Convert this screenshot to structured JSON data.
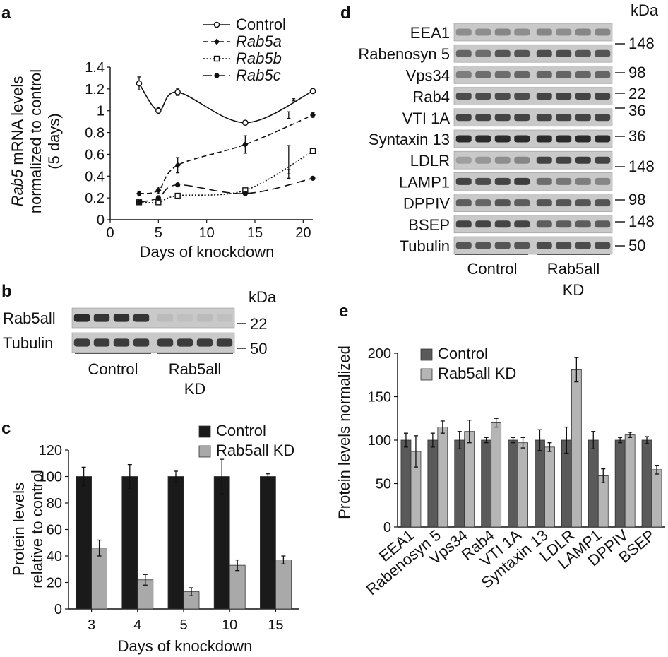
{
  "colors": {
    "control_bar": "#1a1a1a",
    "kd_bar": "#a9a9a9",
    "e_control": "#5a5a5a",
    "e_kd": "#b5b5b5"
  },
  "panel_a": {
    "letter": "a",
    "ylabel_italic": "Rab5",
    "ylabel_rest": " mRNA levels",
    "ylabel_line2": "normalized to control",
    "ylabel_line3": "(5 days)",
    "xlabel": "Days of knockdown",
    "legend": [
      {
        "label": "Control",
        "italic": false
      },
      {
        "label": "Rab5a",
        "italic": true
      },
      {
        "label": "Rab5b",
        "italic": true
      },
      {
        "label": "Rab5c",
        "italic": true
      }
    ]
  },
  "panel_b": {
    "letter": "b",
    "kda": "kDa",
    "rows": [
      {
        "label": "Rab5all",
        "kda": "22"
      },
      {
        "label": "Tubulin",
        "kda": "50"
      }
    ],
    "groups": [
      "Control",
      "Rab5all",
      "KD"
    ]
  },
  "panel_c": {
    "letter": "c",
    "ylabel_line1": "Protein levels",
    "ylabel_line2": "relative to control",
    "xlabel": "Days of knockdown"
  },
  "panel_d": {
    "letter": "d",
    "kda": "kDa",
    "rows": [
      {
        "label": "EEA1",
        "kda": "148"
      },
      {
        "label": "Rabenosyn 5",
        "kda": ""
      },
      {
        "label": "Vps34",
        "kda": "98"
      },
      {
        "label": "Rab4",
        "kda": "22"
      },
      {
        "label": "VTI 1A",
        "kda": "36"
      },
      {
        "label": "Syntaxin 13",
        "kda": "36"
      },
      {
        "label": "LDLR",
        "kda": "148"
      },
      {
        "label": "LAMP1",
        "kda": ""
      },
      {
        "label": "DPPIV",
        "kda": "98"
      },
      {
        "label": "BSEP",
        "kda": "148"
      },
      {
        "label": "Tubulin",
        "kda": "50"
      }
    ],
    "groups": [
      "Control",
      "Rab5all",
      "KD"
    ]
  },
  "panel_e": {
    "letter": "e",
    "ylabel": "Protein levels normalized"
  },
  "chart_data": [
    {
      "type": "line",
      "panel": "a",
      "xlabel": "Days of knockdown",
      "ylabel": "Rab5 mRNA levels normalized to control (5 days)",
      "xlim": [
        0,
        21
      ],
      "ylim": [
        0,
        1.4
      ],
      "xticks": [
        0,
        5,
        10,
        15,
        20
      ],
      "yticks": [
        0,
        0.2,
        0.4,
        0.6,
        0.8,
        1,
        1.2,
        1.4
      ],
      "legend_position": "top-right",
      "x": [
        3,
        5,
        7,
        14,
        21
      ],
      "series": [
        {
          "name": "Control",
          "values": [
            1.25,
            1.0,
            1.17,
            0.89,
            1.18
          ],
          "errors": [
            0.06,
            0.03,
            0.03,
            0.02,
            0.02
          ],
          "style": "solid",
          "marker": "open-circle"
        },
        {
          "name": "Rab5a",
          "values": [
            0.24,
            0.27,
            0.5,
            0.69,
            0.96
          ],
          "errors": [
            0.02,
            0.03,
            0.07,
            0.08,
            0.02
          ],
          "style": "dashed",
          "marker": "diamond"
        },
        {
          "name": "Rab5b",
          "values": [
            0.16,
            0.16,
            0.22,
            0.27,
            0.63
          ],
          "errors": [
            0.01,
            0.02,
            0.02,
            0.02,
            0.02
          ],
          "style": "dotted",
          "marker": "open-square"
        },
        {
          "name": "Rab5c",
          "values": [
            0.16,
            0.2,
            0.32,
            0.24,
            0.38
          ],
          "errors": [
            0.01,
            0.02,
            0.01,
            0.02,
            0.01
          ],
          "style": "long-dash",
          "marker": "filled-circle"
        }
      ],
      "extra_errorbars": [
        {
          "x": 18.5,
          "y": 0.96,
          "err": 0.03
        },
        {
          "x": 19.0,
          "y": 1.1,
          "err": 0.01
        },
        {
          "x": 18.5,
          "y": 0.55,
          "err": 0.13
        },
        {
          "x": 18.5,
          "y": 0.42,
          "err": 0.04
        }
      ]
    },
    {
      "type": "bar",
      "panel": "c",
      "categories": [
        "3",
        "4",
        "5",
        "10",
        "15"
      ],
      "xlabel": "Days of knockdown",
      "ylabel": "Protein levels relative to control",
      "ylim": [
        0,
        120
      ],
      "yticks": [
        0,
        20,
        40,
        60,
        80,
        100,
        120
      ],
      "legend_position": "top-right",
      "series": [
        {
          "name": "Control",
          "values": [
            100,
            100,
            100,
            100,
            100
          ],
          "errors": [
            7,
            9,
            4,
            13,
            2
          ]
        },
        {
          "name": "Rab5all KD",
          "values": [
            46,
            22,
            13,
            33,
            37
          ],
          "errors": [
            6,
            4,
            3,
            4,
            3
          ]
        }
      ]
    },
    {
      "type": "bar",
      "panel": "e",
      "categories": [
        "EEA1",
        "Rabenosyn 5",
        "Vps34",
        "Rab4",
        "VTI 1A",
        "Syntaxin 13",
        "LDLR",
        "LAMP1",
        "DPPIV",
        "BSEP"
      ],
      "ylabel": "Protein levels normalized",
      "ylim": [
        0,
        200
      ],
      "yticks": [
        0,
        50,
        100,
        150,
        200
      ],
      "legend_position": "top-left",
      "series": [
        {
          "name": "Control",
          "values": [
            100,
            100,
            100,
            100,
            100,
            100,
            100,
            100,
            100,
            100
          ],
          "errors": [
            8,
            8,
            10,
            3,
            3,
            12,
            15,
            10,
            3,
            4
          ]
        },
        {
          "name": "Rab5all KD",
          "values": [
            87,
            115,
            110,
            120,
            97,
            92,
            181,
            59,
            106,
            66
          ],
          "errors": [
            18,
            7,
            13,
            5,
            6,
            5,
            14,
            8,
            3,
            5
          ]
        }
      ]
    }
  ]
}
